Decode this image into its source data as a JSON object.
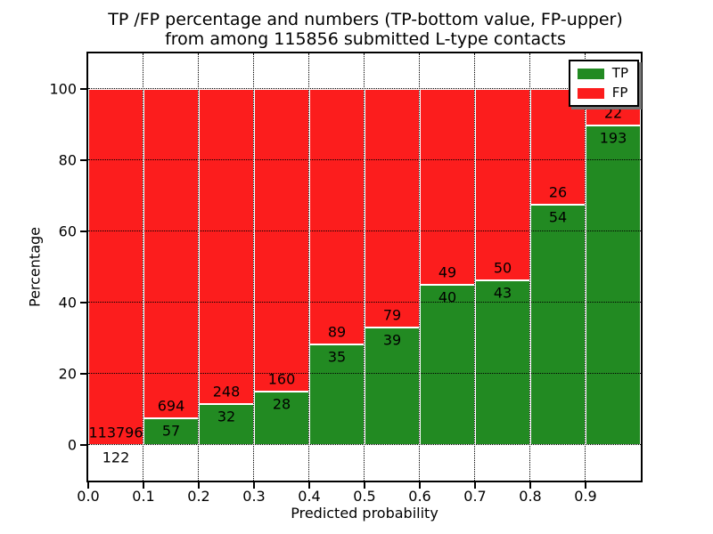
{
  "chart_data": {
    "type": "bar",
    "subtype": "stacked-percentage-histogram",
    "title": "TP /FP percentage and numbers (TP-bottom value, FP-upper) from among 115856 submitted L-type contacts",
    "title_line1": "TP /FP percentage and numbers (TP-bottom value, FP-upper)",
    "title_line2": "from among 115856 submitted L-type contacts",
    "xlabel": "Predicted probability",
    "ylabel": "Percentage",
    "total_submitted": 115856,
    "bin_width": 0.1,
    "categories": [
      "0.0-0.1",
      "0.1-0.2",
      "0.2-0.3",
      "0.3-0.4",
      "0.4-0.5",
      "0.5-0.6",
      "0.6-0.7",
      "0.7-0.8",
      "0.8-0.9",
      "0.9-1.0"
    ],
    "series": [
      {
        "name": "TP",
        "color": "#228a22",
        "counts": [
          122,
          57,
          32,
          28,
          35,
          39,
          40,
          43,
          54,
          193
        ]
      },
      {
        "name": "FP",
        "color": "#fc1d1d",
        "counts": [
          113796,
          694,
          248,
          160,
          89,
          79,
          49,
          50,
          26,
          22
        ]
      }
    ],
    "tp_percent": [
      0.11,
      7.59,
      11.43,
      14.89,
      28.23,
      33.05,
      44.94,
      46.24,
      67.5,
      89.77
    ],
    "xlim": [
      0.0,
      1.0
    ],
    "ylim": [
      -10,
      110
    ],
    "xticks": [
      {
        "v": 0.0,
        "label": "0.0"
      },
      {
        "v": 0.1,
        "label": "0.1"
      },
      {
        "v": 0.2,
        "label": "0.2"
      },
      {
        "v": 0.3,
        "label": "0.3"
      },
      {
        "v": 0.4,
        "label": "0.4"
      },
      {
        "v": 0.5,
        "label": "0.5"
      },
      {
        "v": 0.6,
        "label": "0.6"
      },
      {
        "v": 0.7,
        "label": "0.7"
      },
      {
        "v": 0.8,
        "label": "0.8"
      },
      {
        "v": 0.9,
        "label": "0.9"
      }
    ],
    "yticks": [
      {
        "v": 0,
        "label": "0"
      },
      {
        "v": 20,
        "label": "20"
      },
      {
        "v": 40,
        "label": "40"
      },
      {
        "v": 60,
        "label": "60"
      },
      {
        "v": 80,
        "label": "80"
      },
      {
        "v": 100,
        "label": "100"
      }
    ],
    "grid": "dotted black, both axes, drawn above bars",
    "legend": {
      "position": "upper right",
      "items": [
        {
          "label": "TP",
          "color": "#228a22"
        },
        {
          "label": "FP",
          "color": "#fc1d1d"
        }
      ]
    }
  }
}
